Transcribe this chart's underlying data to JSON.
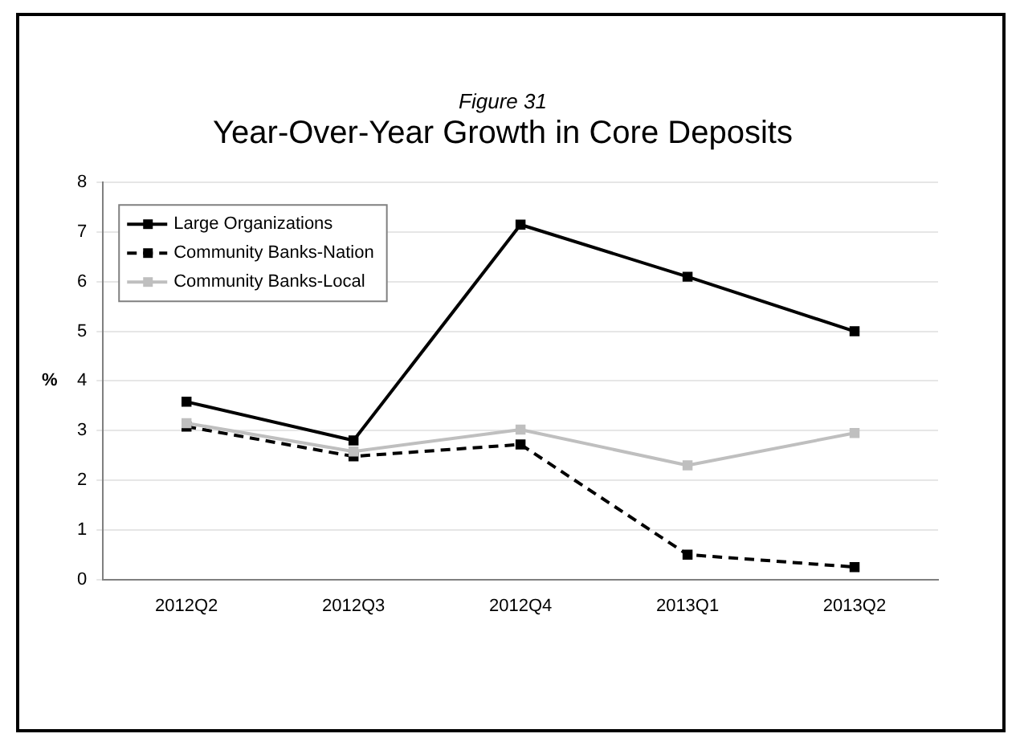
{
  "chart_data": {
    "type": "line",
    "subtitle": "Figure 31",
    "title": "Year-Over-Year Growth in Core Deposits",
    "ylabel": "%",
    "categories": [
      "2012Q2",
      "2012Q3",
      "2012Q4",
      "2013Q1",
      "2013Q2"
    ],
    "series": [
      {
        "name": "Large Organizations",
        "color": "#000000",
        "line_style": "solid",
        "values": [
          3.58,
          2.8,
          7.15,
          6.1,
          5.0
        ]
      },
      {
        "name": "Community Banks-Nation",
        "color": "#000000",
        "line_style": "dashed",
        "values": [
          3.08,
          2.48,
          2.72,
          0.5,
          0.25
        ]
      },
      {
        "name": "Community Banks-Local",
        "color": "#bfbfbf",
        "line_style": "solid",
        "values": [
          3.15,
          2.58,
          3.02,
          2.3,
          2.95
        ]
      }
    ],
    "ylim": [
      0,
      8
    ],
    "yticks": [
      0,
      1,
      2,
      3,
      4,
      5,
      6,
      7,
      8
    ],
    "grid": "y",
    "legend": "top left",
    "marker": "square"
  }
}
